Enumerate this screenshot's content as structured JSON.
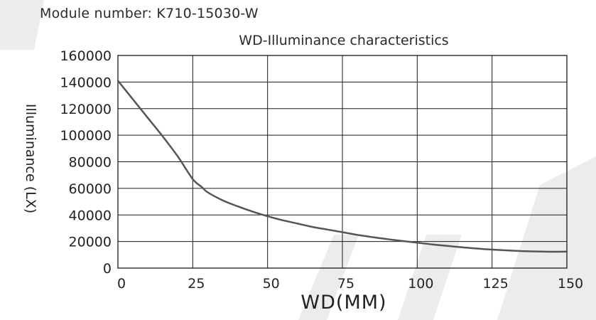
{
  "module_label": "Module number: K710-15030-W",
  "chart_data": {
    "type": "line",
    "title": "WD-Illuminance characteristics",
    "xlabel": "WD(MM)",
    "ylabel": "Illuminance (LX)",
    "xlim": [
      0,
      150
    ],
    "ylim": [
      0,
      160000
    ],
    "x_ticks": [
      "0",
      "25",
      "50",
      "75",
      "100",
      "125",
      "150"
    ],
    "y_ticks": [
      "0",
      "20000",
      "40000",
      "60000",
      "80000",
      "100000",
      "120000",
      "140000",
      "160000"
    ],
    "grid": true,
    "line_color": "#555555",
    "series": [
      {
        "x": [
          0,
          5,
          10,
          15,
          20,
          25,
          28,
          30,
          35,
          40,
          45,
          50,
          55,
          60,
          65,
          70,
          75,
          80,
          85,
          90,
          95,
          100,
          105,
          110,
          115,
          120,
          125,
          130,
          135,
          140,
          145,
          150
        ],
        "values": [
          141000,
          127000,
          113000,
          99000,
          84000,
          67000,
          61000,
          57000,
          51000,
          46500,
          42500,
          39000,
          36000,
          33500,
          31000,
          29000,
          27000,
          25000,
          23300,
          21800,
          20400,
          19100,
          17800,
          16700,
          15600,
          14700,
          13900,
          13300,
          12800,
          12500,
          12300,
          12400
        ]
      }
    ]
  }
}
